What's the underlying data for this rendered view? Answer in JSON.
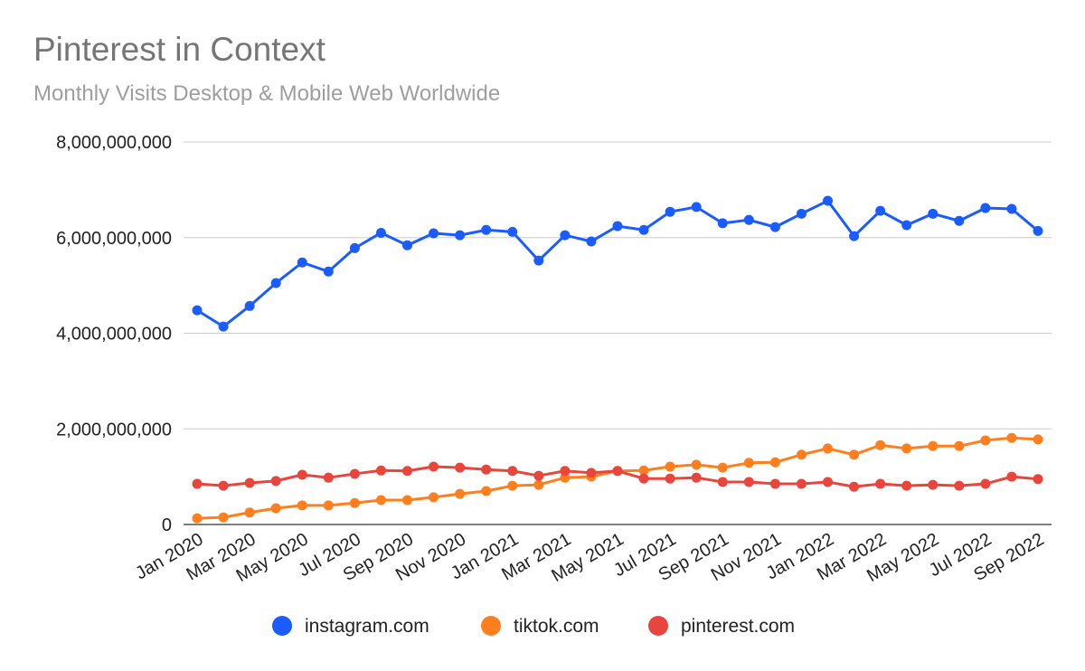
{
  "chart_data": {
    "type": "line",
    "title": "Pinterest in Context",
    "subtitle": "Monthly Visits Desktop & Mobile Web Worldwide",
    "xlabel": "",
    "ylabel": "",
    "ylim": [
      0,
      8000000000
    ],
    "yticks": [
      "0",
      "2,000,000,000",
      "4,000,000,000",
      "6,000,000,000",
      "8,000,000,000"
    ],
    "ytick_values": [
      0,
      2000000000,
      4000000000,
      6000000000,
      8000000000
    ],
    "grid": true,
    "legend": "bottom",
    "x": [
      "Jan 2020",
      "Feb 2020",
      "Mar 2020",
      "Apr 2020",
      "May 2020",
      "Jun 2020",
      "Jul 2020",
      "Aug 2020",
      "Sep 2020",
      "Oct 2020",
      "Nov 2020",
      "Dec 2020",
      "Jan 2021",
      "Feb 2021",
      "Mar 2021",
      "Apr 2021",
      "May 2021",
      "Jun 2021",
      "Jul 2021",
      "Aug 2021",
      "Sep 2021",
      "Oct 2021",
      "Nov 2021",
      "Dec 2021",
      "Jan 2022",
      "Feb 2022",
      "Mar 2022",
      "Apr 2022",
      "May 2022",
      "Jun 2022",
      "Jul 2022",
      "Aug 2022",
      "Sep 2022"
    ],
    "xticks": [
      "Jan 2020",
      "Mar 2020",
      "May 2020",
      "Jul 2020",
      "Sep 2020",
      "Nov 2020",
      "Jan 2021",
      "Mar 2021",
      "May 2021",
      "Jul 2021",
      "Sep 2021",
      "Nov 2021",
      "Jan 2022",
      "Mar 2022",
      "May 2022",
      "Jul 2022",
      "Sep 2022"
    ],
    "series": [
      {
        "name": "instagram.com",
        "color": "#1a5cff",
        "values": [
          4480000000,
          4140000000,
          4570000000,
          5050000000,
          5480000000,
          5290000000,
          5780000000,
          6100000000,
          5840000000,
          6090000000,
          6050000000,
          6160000000,
          6120000000,
          5520000000,
          6050000000,
          5920000000,
          6240000000,
          6160000000,
          6540000000,
          6640000000,
          6300000000,
          6370000000,
          6220000000,
          6500000000,
          6770000000,
          6030000000,
          6560000000,
          6260000000,
          6500000000,
          6350000000,
          6620000000,
          6600000000,
          6140000000
        ]
      },
      {
        "name": "tiktok.com",
        "color": "#ff7f1e",
        "values": [
          130000000,
          150000000,
          250000000,
          340000000,
          400000000,
          400000000,
          450000000,
          510000000,
          510000000,
          570000000,
          640000000,
          700000000,
          810000000,
          830000000,
          980000000,
          1000000000,
          1120000000,
          1130000000,
          1210000000,
          1250000000,
          1190000000,
          1290000000,
          1300000000,
          1460000000,
          1590000000,
          1460000000,
          1660000000,
          1590000000,
          1640000000,
          1640000000,
          1760000000,
          1810000000,
          1780000000
        ]
      },
      {
        "name": "pinterest.com",
        "color": "#e8453c",
        "values": [
          850000000,
          810000000,
          870000000,
          910000000,
          1040000000,
          980000000,
          1060000000,
          1130000000,
          1120000000,
          1210000000,
          1190000000,
          1150000000,
          1120000000,
          1020000000,
          1120000000,
          1080000000,
          1120000000,
          960000000,
          960000000,
          980000000,
          890000000,
          890000000,
          850000000,
          850000000,
          890000000,
          790000000,
          850000000,
          810000000,
          830000000,
          810000000,
          850000000,
          1000000000,
          950000000
        ]
      }
    ]
  }
}
